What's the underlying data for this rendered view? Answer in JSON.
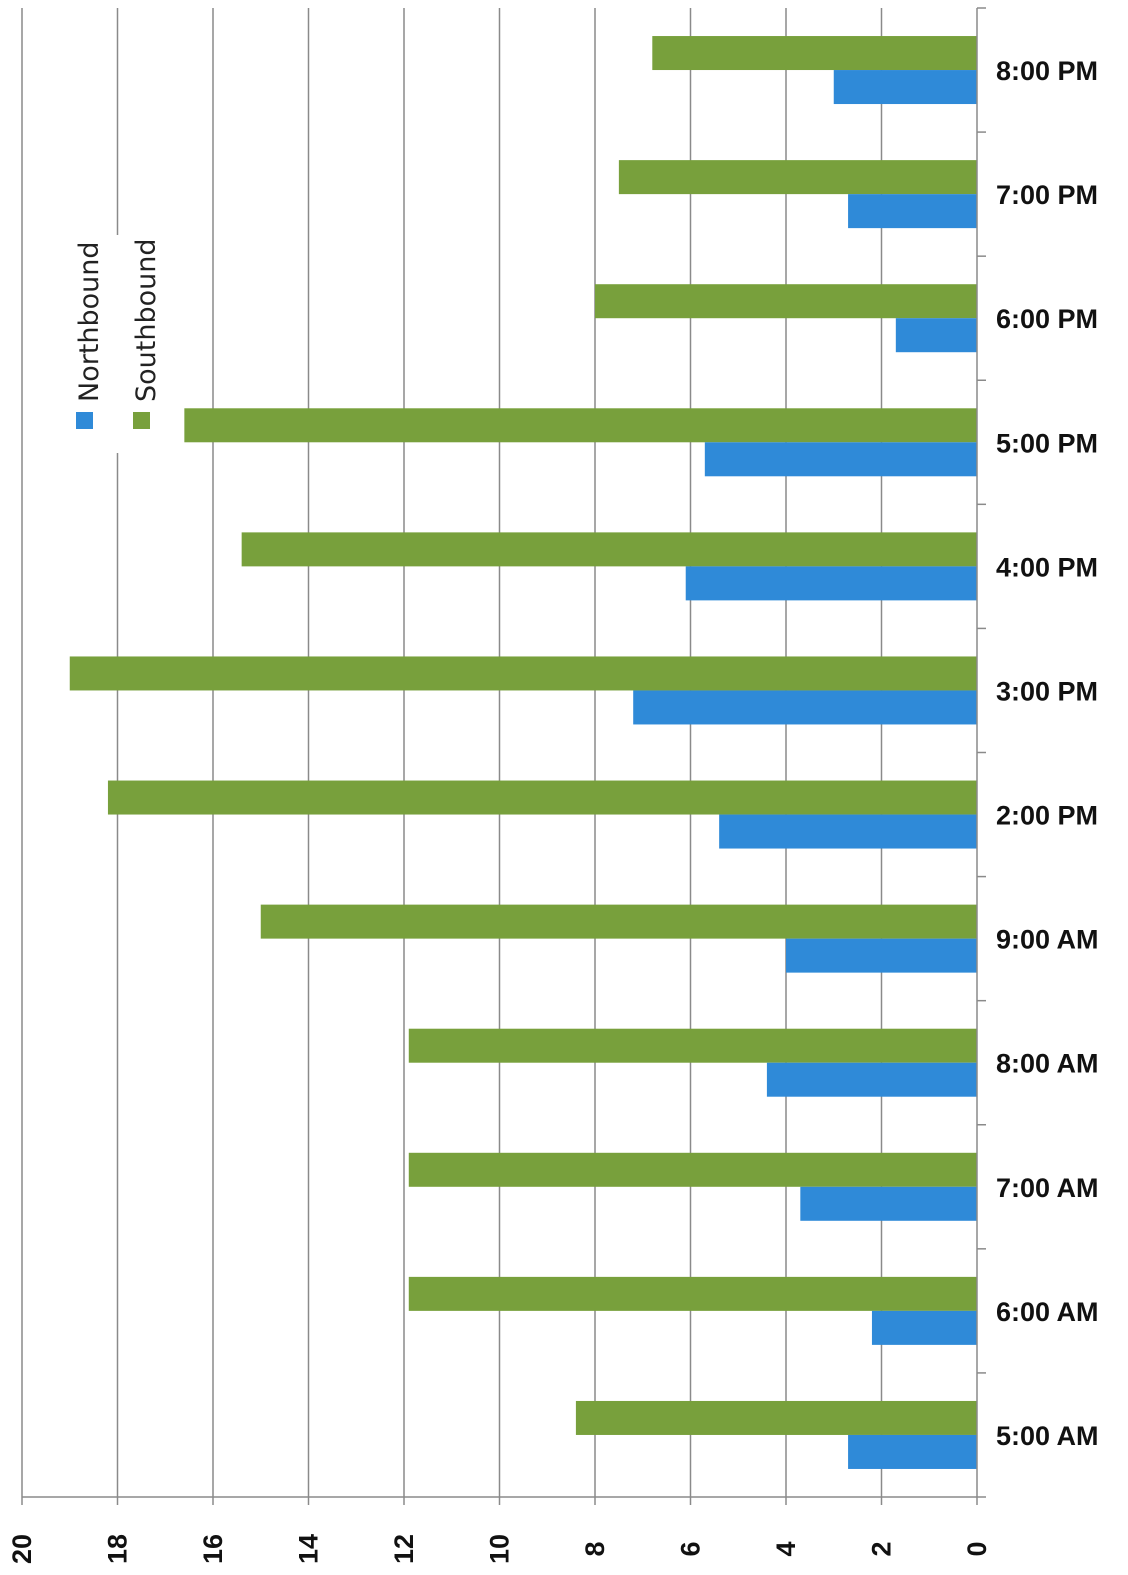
{
  "chart_data": {
    "type": "bar",
    "orientation": "horizontal",
    "categories": [
      "5:00 AM",
      "6:00 AM",
      "7:00 AM",
      "8:00 AM",
      "9:00 AM",
      "2:00 PM",
      "3:00 PM",
      "4:00 PM",
      "5:00 PM",
      "6:00 PM",
      "7:00 PM",
      "8:00 PM"
    ],
    "series": [
      {
        "name": "Northbound",
        "color": "#2f8ad8",
        "values": [
          2.7,
          2.2,
          3.7,
          4.4,
          4.0,
          5.4,
          7.2,
          6.1,
          5.7,
          1.7,
          2.7,
          3.0
        ]
      },
      {
        "name": "Southbound",
        "color": "#78a03c",
        "values": [
          8.4,
          11.9,
          11.9,
          11.9,
          15.0,
          18.2,
          19.0,
          15.4,
          16.6,
          8.0,
          7.5,
          6.8
        ]
      }
    ],
    "ticks": [
      "0",
      "2",
      "4",
      "6",
      "8",
      "10",
      "12",
      "14",
      "16",
      "18",
      "20"
    ],
    "range": [
      0,
      20
    ],
    "grid": true,
    "legend_position": "upper-left",
    "rotation": "rotated 90 degrees clockwise"
  }
}
